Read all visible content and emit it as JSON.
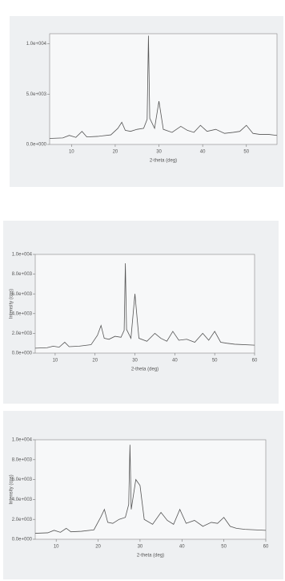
{
  "chart_data": [
    {
      "type": "line",
      "x_label": "2-theta (deg)",
      "xlim": [
        5,
        57
      ],
      "ylim": [
        0,
        11000
      ],
      "xticks": [
        10,
        20,
        30,
        40,
        50
      ],
      "yticks": [
        {
          "value": 0,
          "label": "0.0e+000"
        },
        {
          "value": 5000,
          "label": "5.0e+003"
        },
        {
          "value": 10000,
          "label": "1.0e+004"
        }
      ],
      "x": [
        5,
        8,
        9.5,
        11,
        12.4,
        13.5,
        16,
        19,
        20.6,
        21.5,
        22.3,
        23.5,
        25,
        26.5,
        27.3,
        27.6,
        27.9,
        29,
        30,
        31,
        33,
        35,
        36.5,
        38,
        39.5,
        41,
        43,
        45,
        47,
        48.5,
        50,
        51.5,
        53,
        55,
        57
      ],
      "color": "#555555",
      "values": [
        600,
        650,
        900,
        700,
        1300,
        750,
        800,
        950,
        1600,
        2200,
        1400,
        1300,
        1500,
        1600,
        2500,
        10800,
        2600,
        1600,
        4300,
        1500,
        1200,
        1800,
        1400,
        1200,
        1900,
        1300,
        1500,
        1100,
        1200,
        1300,
        1900,
        1100,
        1000,
        1000,
        900
      ]
    },
    {
      "type": "line",
      "x_label": "2-theta (deg)",
      "y_label": "Intensity (cps)",
      "xlim": [
        5,
        60
      ],
      "ylim": [
        0,
        10000
      ],
      "xticks": [
        10,
        20,
        30,
        40,
        50,
        60
      ],
      "yticks": [
        {
          "value": 0,
          "label": "0.0e+000"
        },
        {
          "value": 2000,
          "label": "2.0e+003"
        },
        {
          "value": 4000,
          "label": "4.0e+003"
        },
        {
          "value": 6000,
          "label": "6.0e+003"
        },
        {
          "value": 8000,
          "label": "8.0e+003"
        },
        {
          "value": 10000,
          "label": "1.0e+004"
        }
      ],
      "x": [
        5,
        8,
        9.5,
        11,
        12.4,
        13.5,
        16,
        19,
        20.6,
        21.5,
        22.3,
        23.5,
        25,
        26.5,
        27.3,
        27.6,
        27.9,
        29,
        30,
        31,
        33,
        35,
        36.5,
        38,
        39.5,
        41,
        43,
        45,
        47,
        48.5,
        50,
        51.5,
        53,
        55,
        60
      ],
      "color": "#555555",
      "values": [
        500,
        550,
        700,
        600,
        1100,
        650,
        700,
        850,
        1800,
        2800,
        1500,
        1400,
        1700,
        1600,
        2300,
        9100,
        2400,
        1500,
        6000,
        1500,
        1200,
        2000,
        1500,
        1200,
        2200,
        1300,
        1400,
        1100,
        2000,
        1300,
        2200,
        1100,
        1000,
        900,
        800
      ]
    },
    {
      "type": "line",
      "x_label": "2-theta (deg)",
      "y_label": "Intensity (cps)",
      "xlim": [
        5,
        60
      ],
      "ylim": [
        0,
        10000
      ],
      "xticks": [
        10,
        20,
        30,
        40,
        50,
        60
      ],
      "yticks": [
        {
          "value": 0,
          "label": "0.0e+000"
        },
        {
          "value": 2000,
          "label": "2.0e+003"
        },
        {
          "value": 4000,
          "label": "4.0e+003"
        },
        {
          "value": 6000,
          "label": "6.0e+003"
        },
        {
          "value": 8000,
          "label": "8.0e+003"
        },
        {
          "value": 10000,
          "label": "1.0e+004"
        }
      ],
      "x": [
        5,
        8,
        9.5,
        11,
        12.4,
        13.5,
        16,
        19,
        20.6,
        21.5,
        22.3,
        23.5,
        25,
        26.5,
        27.3,
        27.6,
        27.9,
        29,
        30,
        31,
        33,
        35,
        36.5,
        38,
        39.5,
        41,
        43,
        45,
        47,
        48.5,
        50,
        51.5,
        53,
        55,
        60
      ],
      "color": "#555555",
      "values": [
        600,
        650,
        900,
        700,
        1100,
        750,
        800,
        950,
        2200,
        3000,
        1700,
        1600,
        2000,
        2200,
        3500,
        9500,
        3000,
        6000,
        5400,
        2000,
        1500,
        2700,
        1900,
        1500,
        3000,
        1600,
        1900,
        1300,
        1700,
        1600,
        2200,
        1300,
        1100,
        1000,
        900
      ]
    }
  ]
}
